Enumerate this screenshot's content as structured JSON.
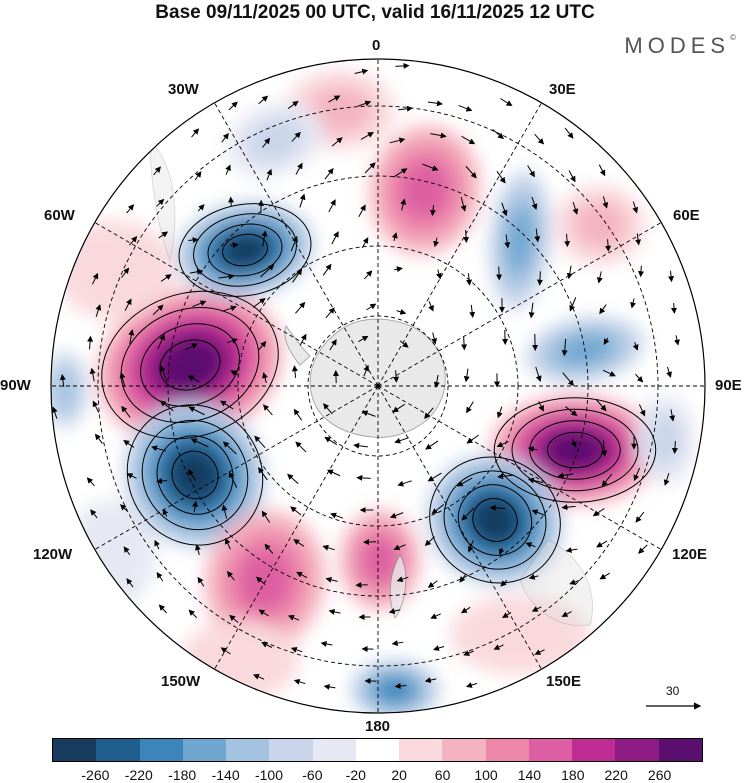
{
  "title": "Base 09/11/2025 00 UTC, valid 16/11/2025 12 UTC",
  "brand": "MODES",
  "brand_mark": "©",
  "map": {
    "projection": "south polar stereographic",
    "labels": {
      "lon_0": "0",
      "lon_30E": "30E",
      "lon_60E": "60E",
      "lon_90E": "90E",
      "lon_120E": "120E",
      "lon_150E": "150E",
      "lon_180": "180",
      "lon_150W": "150W",
      "lon_120W": "120W",
      "lon_90W": "90W",
      "lon_60W": "60W",
      "lon_30W": "30W"
    },
    "vector_scale": "30"
  },
  "colorbar": {
    "colors": [
      "#173a5e",
      "#1f5d8c",
      "#3b85bb",
      "#6fa7d1",
      "#a3c3e0",
      "#c9d5ea",
      "#e6e8f3",
      "#ffffff",
      "#f9d9dd",
      "#f4b3c0",
      "#ed88ab",
      "#dd5ea2",
      "#c02c93",
      "#8e1a83",
      "#5a0e6e"
    ],
    "ticks": [
      "-260",
      "-220",
      "-180",
      "-140",
      "-100",
      "-60",
      "-20",
      "20",
      "60",
      "100",
      "140",
      "180",
      "220",
      "260"
    ]
  }
}
